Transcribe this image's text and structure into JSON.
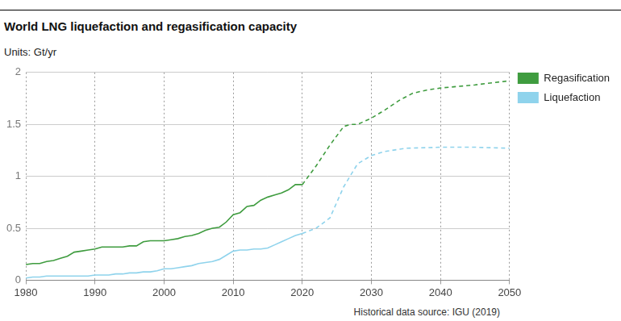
{
  "chart_data": {
    "type": "line",
    "title": "World LNG liquefaction and regasification capacity",
    "subtitle": "Units: Gt/yr",
    "source": "Historical data source: IGU (2019)",
    "xlim": [
      1980,
      2050
    ],
    "xticks": [
      1980,
      1990,
      2000,
      2010,
      2020,
      2030,
      2040,
      2050
    ],
    "ylim": [
      0,
      2
    ],
    "yticks": [
      0,
      0.5,
      1,
      1.5,
      2
    ],
    "grid": true,
    "legend": "right",
    "series": [
      {
        "name": "Regasification",
        "color": "#3f9c3f",
        "line_style": "solid",
        "x": [
          1980,
          1981,
          1982,
          1983,
          1984,
          1985,
          1986,
          1987,
          1988,
          1989,
          1990,
          1991,
          1992,
          1993,
          1994,
          1995,
          1996,
          1997,
          1998,
          1999,
          2000,
          2001,
          2002,
          2003,
          2004,
          2005,
          2006,
          2007,
          2008,
          2009,
          2010,
          2011,
          2012,
          2013,
          2014,
          2015,
          2016,
          2017,
          2018,
          2019,
          2020
        ],
        "values": [
          0.15,
          0.16,
          0.16,
          0.18,
          0.19,
          0.21,
          0.23,
          0.27,
          0.28,
          0.29,
          0.3,
          0.32,
          0.32,
          0.32,
          0.32,
          0.33,
          0.33,
          0.37,
          0.38,
          0.38,
          0.38,
          0.39,
          0.4,
          0.42,
          0.43,
          0.45,
          0.48,
          0.5,
          0.51,
          0.56,
          0.63,
          0.65,
          0.71,
          0.72,
          0.77,
          0.8,
          0.82,
          0.84,
          0.87,
          0.92,
          0.92
        ]
      },
      {
        "name": "Liquefaction",
        "color": "#8fd3ec",
        "line_style": "solid",
        "x": [
          1980,
          1981,
          1982,
          1983,
          1984,
          1985,
          1986,
          1987,
          1988,
          1989,
          1990,
          1991,
          1992,
          1993,
          1994,
          1995,
          1996,
          1997,
          1998,
          1999,
          2000,
          2001,
          2002,
          2003,
          2004,
          2005,
          2006,
          2007,
          2008,
          2009,
          2010,
          2011,
          2012,
          2013,
          2014,
          2015,
          2016,
          2017,
          2018,
          2019,
          2020
        ],
        "values": [
          0.02,
          0.03,
          0.03,
          0.04,
          0.04,
          0.04,
          0.04,
          0.04,
          0.04,
          0.04,
          0.05,
          0.05,
          0.05,
          0.06,
          0.06,
          0.07,
          0.07,
          0.08,
          0.08,
          0.09,
          0.11,
          0.11,
          0.12,
          0.13,
          0.14,
          0.16,
          0.17,
          0.18,
          0.2,
          0.24,
          0.28,
          0.29,
          0.29,
          0.3,
          0.3,
          0.31,
          0.34,
          0.37,
          0.4,
          0.43,
          0.45
        ]
      },
      {
        "name": "Regasification",
        "color": "#3f9c3f",
        "line_style": "dashed",
        "x": [
          2020,
          2022,
          2024,
          2026,
          2027,
          2028,
          2030,
          2032,
          2034,
          2036,
          2038,
          2040,
          2045,
          2050
        ],
        "values": [
          0.92,
          1.1,
          1.3,
          1.48,
          1.5,
          1.5,
          1.56,
          1.64,
          1.73,
          1.8,
          1.83,
          1.85,
          1.88,
          1.92
        ]
      },
      {
        "name": "Liquefaction",
        "color": "#8fd3ec",
        "line_style": "dashed",
        "x": [
          2020,
          2022,
          2024,
          2026,
          2028,
          2030,
          2032,
          2035,
          2040,
          2045,
          2050
        ],
        "values": [
          0.45,
          0.5,
          0.6,
          0.9,
          1.12,
          1.2,
          1.24,
          1.27,
          1.28,
          1.28,
          1.27
        ]
      }
    ]
  }
}
